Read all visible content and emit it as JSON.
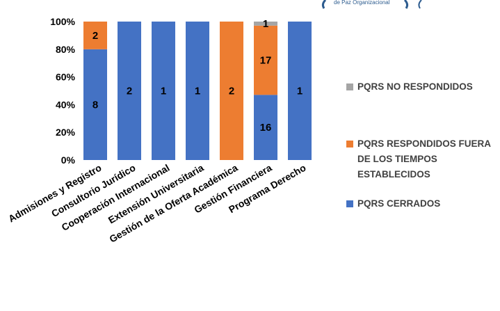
{
  "header": {
    "logo_text": "de Paz Organizacional"
  },
  "colors": {
    "cerrados": "#4472C4",
    "fuera_tiempo": "#ED7D31",
    "no_respondidos": "#A5A5A5"
  },
  "chart_data": {
    "type": "bar",
    "stacked": true,
    "normalized": true,
    "categories": [
      "Admisiones y Registro",
      "Consultorio Jurídico",
      "Cooperación Internacional",
      "Extensión Universitaria",
      "Gestión de la Oferta Académica",
      "Gestión Financiera",
      "Programa Derecho"
    ],
    "series": [
      {
        "name": "PQRS CERRADOS",
        "values": [
          8,
          2,
          1,
          1,
          0,
          16,
          1
        ]
      },
      {
        "name": "PQRS RESPONDIDOS FUERA DE LOS TIEMPOS ESTABLECIDOS",
        "values": [
          2,
          0,
          0,
          0,
          2,
          17,
          0
        ]
      },
      {
        "name": "PQRS NO RESPONDIDOS",
        "values": [
          0,
          0,
          0,
          0,
          0,
          1,
          0
        ]
      }
    ],
    "yticks": [
      "0%",
      "20%",
      "40%",
      "60%",
      "80%",
      "100%"
    ],
    "ylim": [
      0,
      100
    ],
    "legend_position": "right",
    "grid": false
  }
}
